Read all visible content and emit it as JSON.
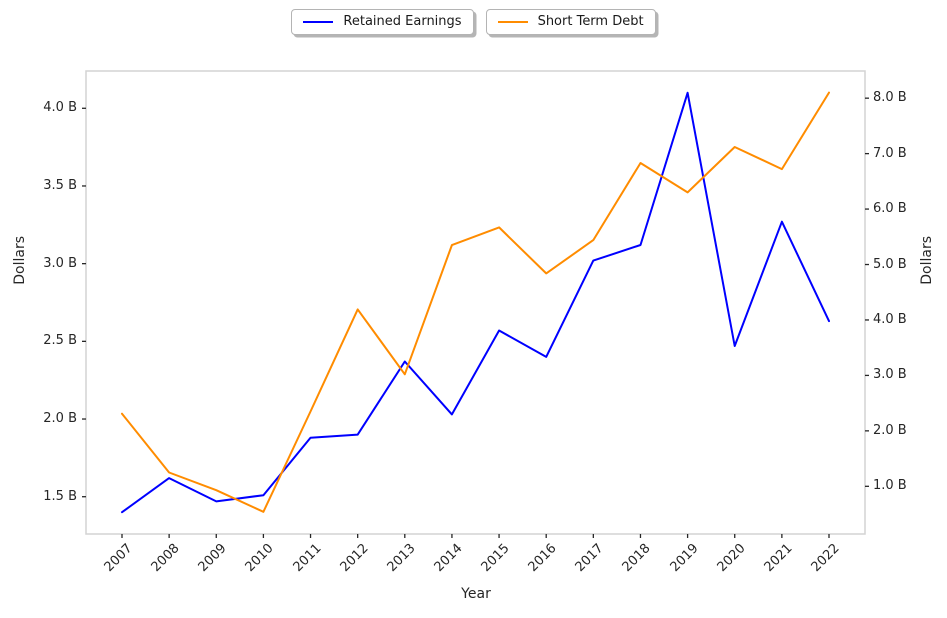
{
  "chart_data": {
    "type": "line",
    "title": "",
    "xlabel": "Year",
    "ylabel_left": "Dollars",
    "ylabel_right": "Dollars",
    "grid": false,
    "legend_position": "top-center",
    "unit": "billions of dollars",
    "categories": [
      "2007",
      "2008",
      "2009",
      "2010",
      "2011",
      "2012",
      "2013",
      "2014",
      "2015",
      "2016",
      "2017",
      "2018",
      "2019",
      "2020",
      "2021",
      "2022"
    ],
    "series": [
      {
        "name": "Retained Earnings",
        "color": "#0000ff",
        "axis": "left",
        "values": [
          1.4,
          1.62,
          1.47,
          1.51,
          1.88,
          1.9,
          2.37,
          2.03,
          2.57,
          2.4,
          3.02,
          3.12,
          4.1,
          2.47,
          3.27,
          2.63
        ]
      },
      {
        "name": "Short Term Debt",
        "color": "#ff8c00",
        "axis": "right",
        "values": [
          2.31,
          1.25,
          0.93,
          0.54,
          2.35,
          4.19,
          3.02,
          5.35,
          5.67,
          4.84,
          5.44,
          6.83,
          6.3,
          7.12,
          6.72,
          8.1
        ]
      }
    ],
    "left_axis": {
      "range": [
        1.26,
        4.24
      ],
      "tick_values": [
        1.5,
        2.0,
        2.5,
        3.0,
        3.5,
        4.0
      ],
      "tick_labels": [
        "1.5 B",
        "2.0 B",
        "2.5 B",
        "3.0 B",
        "3.5 B",
        "4.0 B"
      ]
    },
    "right_axis": {
      "range": [
        0.14,
        8.49
      ],
      "tick_values": [
        1.0,
        2.0,
        3.0,
        4.0,
        5.0,
        6.0,
        7.0,
        8.0
      ],
      "tick_labels": [
        "1.0 B",
        "2.0 B",
        "3.0 B",
        "4.0 B",
        "5.0 B",
        "6.0 B",
        "7.0 B",
        "8.0 B"
      ]
    }
  },
  "colors": {
    "spine": "#d3d3d3",
    "tick": "#262626",
    "background": "#ffffff"
  }
}
